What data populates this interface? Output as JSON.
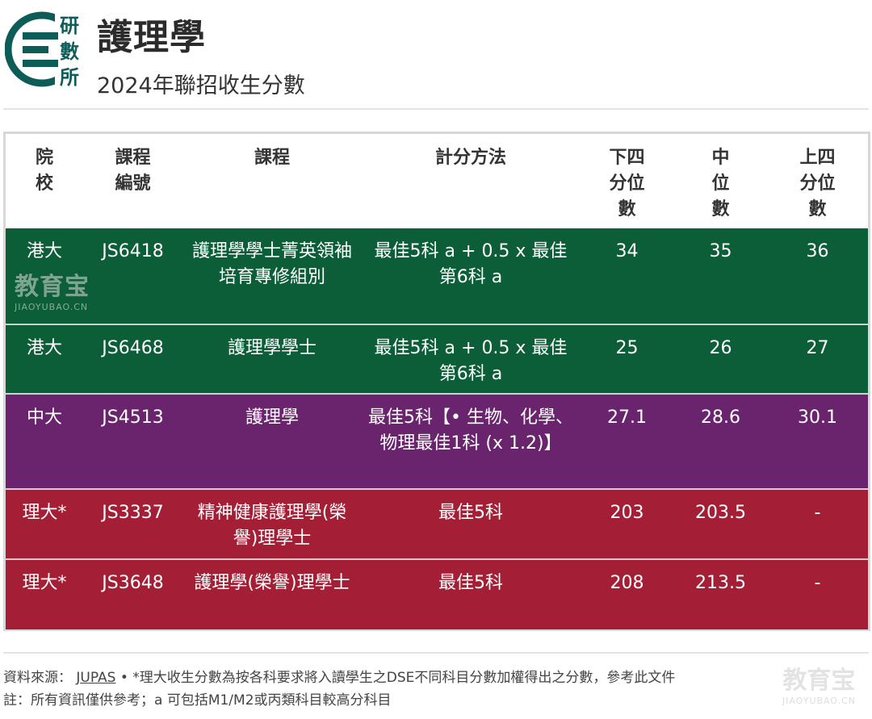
{
  "header": {
    "logo_text": [
      "研",
      "數",
      "所"
    ],
    "title": "護理學",
    "subtitle": "2024年聯招收生分數"
  },
  "table": {
    "headers": [
      [
        "院",
        "校"
      ],
      [
        "課程",
        "編號"
      ],
      [
        "課程"
      ],
      [
        "計分方法"
      ],
      [
        "下四",
        "分位",
        "數"
      ],
      [
        "中",
        "位",
        "數"
      ],
      [
        "上四",
        "分位",
        "數"
      ]
    ],
    "rows": [
      {
        "school": "港大",
        "code": "JS6418",
        "course": "護理學學士菁英領袖培育專修組別",
        "scoring": "最佳5科 a + 0.5 x 最佳第6科 a",
        "lq": "34",
        "median": "35",
        "uq": "36",
        "color": "#0b5e37"
      },
      {
        "school": "港大",
        "code": "JS6468",
        "course": "護理學學士",
        "scoring": "最佳5科 a + 0.5 x 最佳第6科 a",
        "lq": "25",
        "median": "26",
        "uq": "27",
        "color": "#0b5e37"
      },
      {
        "school": "中大",
        "code": "JS4513",
        "course": "護理學",
        "scoring": "最佳5科【• 生物、化學、物理最佳1科 (x 1.2)】",
        "lq": "27.1",
        "median": "28.6",
        "uq": "30.1",
        "color": "#69246d"
      },
      {
        "school": "理大*",
        "code": "JS3337",
        "course": "精神健康護理學(榮譽)理學士",
        "scoring": "最佳5科",
        "lq": "203",
        "median": "203.5",
        "uq": "-",
        "color": "#a41f35"
      },
      {
        "school": "理大*",
        "code": "JS3648",
        "course": "護理學(榮譽)理學士",
        "scoring": "最佳5科",
        "lq": "208",
        "median": "213.5",
        "uq": "-",
        "color": "#a41f35"
      }
    ]
  },
  "watermark": {
    "big": "教育宝",
    "small": "JIAOYUBAO.CN"
  },
  "footer": {
    "source_label": "資料來源：",
    "source_link": "JUPAS",
    "source_note": "• *理大收生分數為按各科要求將入讀學生之DSE不同科目分數加權得出之分數，參考此文件",
    "note": "註：所有資訊僅供參考；a 可包括M1/M2或丙類科目較高分科目"
  }
}
